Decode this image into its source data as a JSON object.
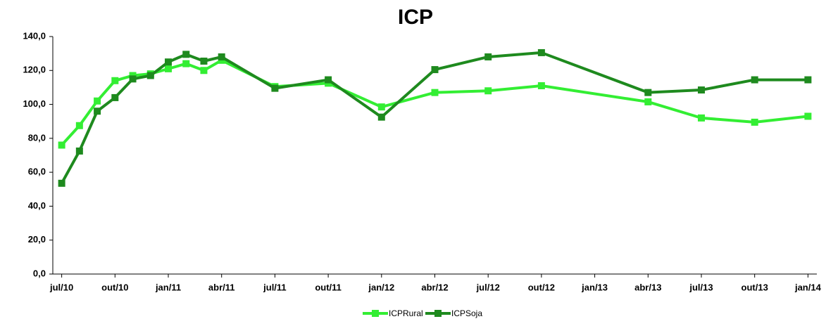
{
  "chart_data": {
    "type": "line",
    "title": "ICP",
    "x": [
      0,
      1,
      2,
      3,
      4,
      5,
      6,
      7,
      8,
      9,
      12,
      15,
      18,
      21,
      24,
      27,
      33,
      36,
      39,
      42
    ],
    "xlim": [
      -0.5,
      42.5
    ],
    "xticks": [
      {
        "value": 0,
        "label": "jul/10"
      },
      {
        "value": 3,
        "label": "out/10"
      },
      {
        "value": 6,
        "label": "jan/11"
      },
      {
        "value": 9,
        "label": "abr/11"
      },
      {
        "value": 12,
        "label": "jul/11"
      },
      {
        "value": 15,
        "label": "out/11"
      },
      {
        "value": 18,
        "label": "jan/12"
      },
      {
        "value": 21,
        "label": "abr/12"
      },
      {
        "value": 24,
        "label": "jul/12"
      },
      {
        "value": 27,
        "label": "out/12"
      },
      {
        "value": 30,
        "label": "jan/13"
      },
      {
        "value": 33,
        "label": "abr/13"
      },
      {
        "value": 36,
        "label": "jul/13"
      },
      {
        "value": 39,
        "label": "out/13"
      },
      {
        "value": 42,
        "label": "jan/14"
      }
    ],
    "ylim": [
      0,
      140
    ],
    "yticks": [
      {
        "value": 0,
        "label": "0,0"
      },
      {
        "value": 20,
        "label": "20,0"
      },
      {
        "value": 40,
        "label": "40,0"
      },
      {
        "value": 60,
        "label": "60,0"
      },
      {
        "value": 80,
        "label": "80,0"
      },
      {
        "value": 100,
        "label": "100,0"
      },
      {
        "value": 120,
        "label": "120,0"
      },
      {
        "value": 140,
        "label": "140,0"
      }
    ],
    "grid": false,
    "legend": "bottom",
    "series": [
      {
        "name": "ICPRural",
        "color": "#33ee33",
        "values": [
          76,
          87.5,
          102,
          114,
          117,
          118,
          121,
          124,
          120,
          126,
          110.5,
          112.5,
          98.5,
          107,
          108,
          111,
          101.5,
          92,
          89.5,
          93
        ]
      },
      {
        "name": "ICPSoja",
        "color": "#1e8a1e",
        "values": [
          53.5,
          72.5,
          96,
          104,
          115,
          117,
          125,
          129.5,
          125.5,
          128,
          109.5,
          114.5,
          92.5,
          120.5,
          128,
          130.5,
          107,
          108.5,
          114.5,
          114.5
        ]
      }
    ]
  }
}
